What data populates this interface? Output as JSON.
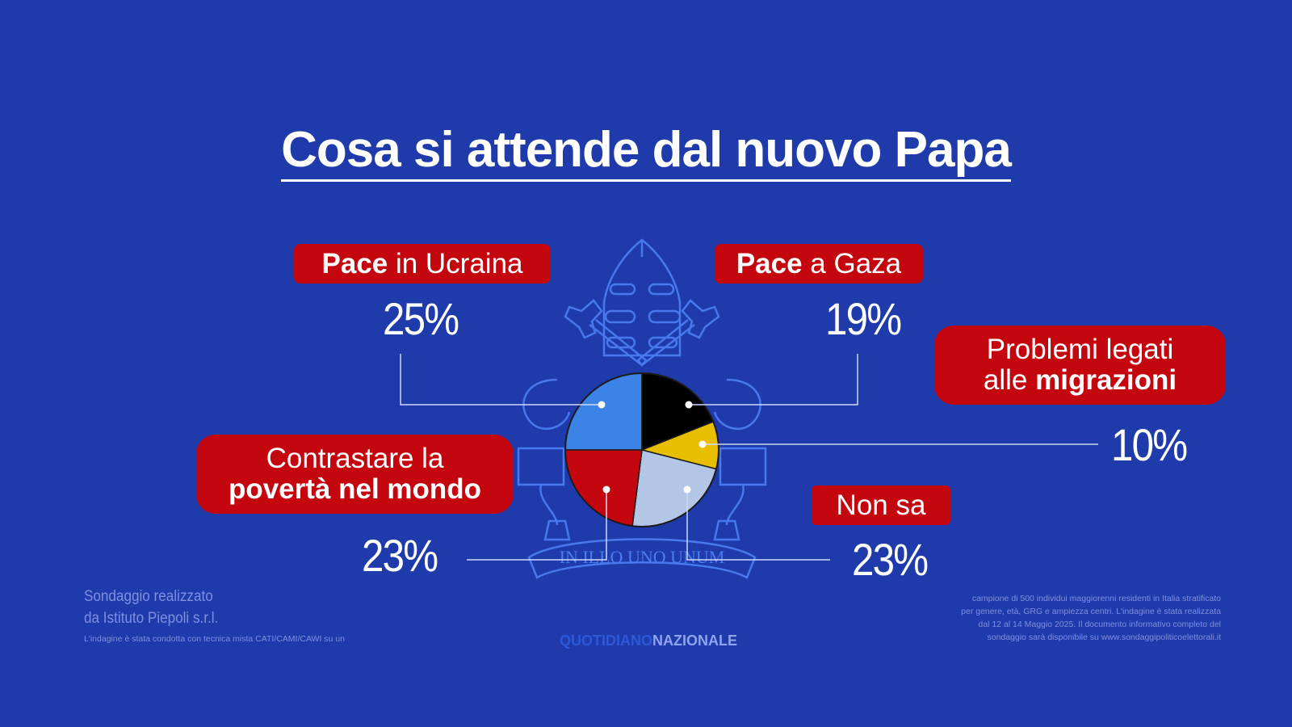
{
  "title": "Cosa si attende dal nuovo Papa",
  "motto": "IN ILLO UNO UNUM",
  "colors": {
    "background": "#1f3aab",
    "label_bg": "#c4060f",
    "line": "#cfd8f5",
    "emblem": "#4a7df0"
  },
  "chart_data": {
    "type": "pie",
    "title": "Cosa si attende dal nuovo Papa",
    "slices": [
      {
        "label_bold": "Pace",
        "label_rest": " in Ucraina",
        "value": 25,
        "value_label": "25%",
        "color": "#3b83e6"
      },
      {
        "label_bold": "Pace",
        "label_rest": " a Gaza",
        "value": 19,
        "value_label": "19%",
        "color": "#000000"
      },
      {
        "label_line1": "Problemi legati",
        "label_line2_pre": "alle ",
        "label_line2_bold": "migrazioni",
        "value": 10,
        "value_label": "10%",
        "color": "#e8bf00"
      },
      {
        "label": "Non sa",
        "value": 23,
        "value_label": "23%",
        "color": "#b4c6e6"
      },
      {
        "label_line1": "Contrastare la",
        "label_line2_bold": "povertà nel mondo",
        "value": 23,
        "value_label": "23%",
        "color": "#c4060f"
      }
    ],
    "legend": "none"
  },
  "footer": {
    "source_line1": "Sondaggio realizzato",
    "source_line2": "da Istituto Piepoli s.r.l.",
    "method": "L'indagine è stata condotta con tecnica mista CATI/CAMI/CAWI su un",
    "sample_line1": "campione di 500 individui maggiorenni residenti in Italia stratificato",
    "sample_line2": "per genere, età, GRG e ampiezza centri. L'indagine è stata realizzata",
    "sample_line3": "dal 12 al 14 Maggio 2025. Il documento informativo completo del",
    "sample_line4": "sondaggio sarà disponibile su www.sondaggipoliticoelettorali.it",
    "brand_a": "QUOTIDIANO",
    "brand_b": "NAZIONALE"
  }
}
